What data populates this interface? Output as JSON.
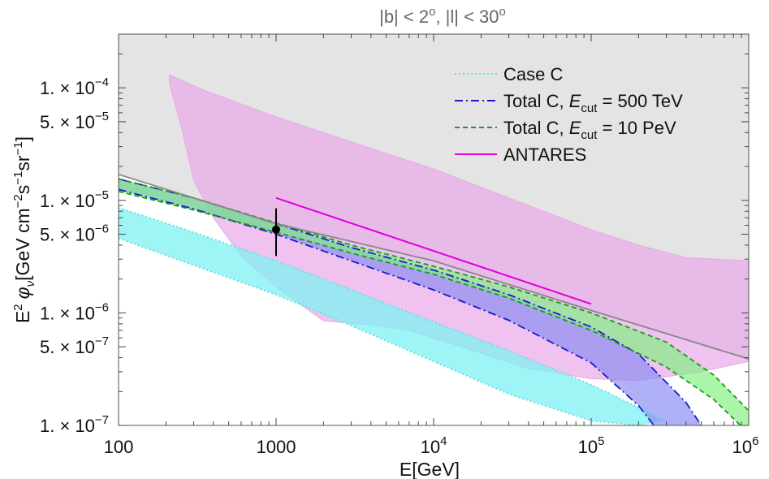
{
  "chart_data": {
    "type": "line",
    "title": "|b| < 2°, |l| < 30°",
    "title_parts": {
      "b": "|b| < 2",
      "sep": ", |l| < 30",
      "deg": "o"
    },
    "xlabel": "E[GeV]",
    "ylabel_parts": {
      "e": "E",
      "two": "2",
      "phi": "φ",
      "nu": "ν",
      "unit": "[GeV cm",
      "m2": "−2",
      "s": "s",
      "m1a": "−1",
      "sr": "sr",
      "m1b": "−1",
      "close": "]"
    },
    "x_scale": "log",
    "y_scale": "log",
    "xlim": [
      100,
      1000000
    ],
    "ylim": [
      1e-07,
      0.0003
    ],
    "x_ticks": [
      {
        "value": 100,
        "label": "100"
      },
      {
        "value": 1000,
        "label": "1000"
      },
      {
        "value": 10000,
        "base": "10",
        "exp": "4"
      },
      {
        "value": 100000,
        "base": "10",
        "exp": "5"
      },
      {
        "value": 1000000,
        "base": "10",
        "exp": "6"
      }
    ],
    "y_ticks": [
      {
        "value": 0.0001,
        "label": "1. × 10",
        "exp": "−4"
      },
      {
        "value": 5e-05,
        "label": "5. × 10",
        "exp": "−5"
      },
      {
        "value": 1e-05,
        "label": "1. × 10",
        "exp": "−5"
      },
      {
        "value": 5e-06,
        "label": "5. × 10",
        "exp": "−6"
      },
      {
        "value": 1e-06,
        "label": "1. × 10",
        "exp": "−6"
      },
      {
        "value": 5e-07,
        "label": "5. × 10",
        "exp": "−7"
      },
      {
        "value": 1e-07,
        "label": "1. × 10",
        "exp": "−7"
      }
    ],
    "legend": {
      "placement": "top-right",
      "entries": [
        {
          "key": "case_c",
          "text": "Case C"
        },
        {
          "key": "total_500",
          "pre": "Total C, ",
          "e": "E",
          "sub": "cut",
          "post": " = 500 TeV"
        },
        {
          "key": "total_10",
          "pre": "Total C, ",
          "e": "E",
          "sub": "cut",
          "post": " = 10 PeV"
        },
        {
          "key": "antares",
          "text": "ANTARES"
        }
      ]
    },
    "colors": {
      "excluded_region": "#e4e4e4",
      "case_c": "#5fe0e0",
      "case_c_fill": "#7ff2f2",
      "total_500": "#1a1acc",
      "total_500_fill": "#8f8ff2",
      "total_10": "#1a9a1a",
      "total_10_fill": "#7cf07c",
      "antares": "#e000d8",
      "antares_band": "#e8a8e8",
      "upper_limit": "#888888",
      "data_point": "#000000"
    },
    "series": [
      {
        "key": "excluded_region",
        "style": "upper limit boundary (gray region above)",
        "points": [
          [
            100,
            1.7e-05
          ],
          [
            1000,
            6.2e-06
          ],
          [
            10000,
            2.9e-06
          ],
          [
            100000,
            1.05e-06
          ],
          [
            1000000,
            3.9e-07
          ]
        ]
      },
      {
        "key": "case_c",
        "style": "dotted band",
        "upper": [
          [
            100,
            8.6e-06
          ],
          [
            300,
            5.2e-06
          ],
          [
            1000,
            2.9e-06
          ],
          [
            3000,
            1.6e-06
          ],
          [
            10000,
            8.3e-07
          ],
          [
            30000,
            4.6e-07
          ],
          [
            100000,
            2.3e-07
          ],
          [
            300000,
            1.1e-07
          ]
        ],
        "lower": [
          [
            100,
            4.6e-06
          ],
          [
            300,
            2.65e-06
          ],
          [
            1000,
            1.45e-06
          ],
          [
            3000,
            7.7e-07
          ],
          [
            10000,
            3.7e-07
          ],
          [
            30000,
            1.9e-07
          ],
          [
            100000,
            1.1e-07
          ],
          [
            200000,
            1e-07
          ]
        ]
      },
      {
        "key": "total_500",
        "style": "dash-dot band",
        "upper": [
          [
            100,
            1.55e-05
          ],
          [
            300,
            1.05e-05
          ],
          [
            1000,
            6.2e-06
          ],
          [
            3000,
            3.8e-06
          ],
          [
            10000,
            2.4e-06
          ],
          [
            30000,
            1.45e-06
          ],
          [
            100000,
            7.5e-07
          ],
          [
            200000,
            4.3e-07
          ],
          [
            400000,
            1.6e-07
          ],
          [
            500000,
            1e-07
          ]
        ],
        "lower": [
          [
            100,
            1.25e-05
          ],
          [
            300,
            8.4e-06
          ],
          [
            1000,
            5e-06
          ],
          [
            3000,
            2.9e-06
          ],
          [
            10000,
            1.6e-06
          ],
          [
            30000,
            8.6e-07
          ],
          [
            100000,
            3.6e-07
          ],
          [
            200000,
            1.5e-07
          ],
          [
            250000,
            1e-07
          ]
        ]
      },
      {
        "key": "total_10",
        "style": "dashed band",
        "upper": [
          [
            100,
            1.55e-05
          ],
          [
            300,
            1.05e-05
          ],
          [
            1000,
            6.3e-06
          ],
          [
            3000,
            4e-06
          ],
          [
            10000,
            2.6e-06
          ],
          [
            30000,
            1.7e-06
          ],
          [
            100000,
            1e-06
          ],
          [
            300000,
            5.5e-07
          ],
          [
            600000,
            2.8e-07
          ],
          [
            1000000,
            1.35e-07
          ]
        ],
        "lower": [
          [
            100,
            1.2e-05
          ],
          [
            300,
            8.2e-06
          ],
          [
            1000,
            5.2e-06
          ],
          [
            3000,
            3.4e-06
          ],
          [
            10000,
            2.2e-06
          ],
          [
            30000,
            1.35e-06
          ],
          [
            100000,
            7e-07
          ],
          [
            300000,
            3.3e-07
          ],
          [
            600000,
            1.7e-07
          ],
          [
            1000000,
            8.5e-08
          ]
        ]
      },
      {
        "key": "antares",
        "style": "solid line",
        "points": [
          [
            1000,
            1.05e-05
          ],
          [
            100000,
            1.2e-06
          ]
        ]
      },
      {
        "key": "antares_band",
        "style": "filled band",
        "upper": [
          [
            210,
            0.00013
          ],
          [
            350,
            9.5e-05
          ],
          [
            1000,
            5.5e-05
          ],
          [
            3000,
            3.3e-05
          ],
          [
            10000,
            1.9e-05
          ],
          [
            30000,
            1.05e-05
          ],
          [
            100000,
            5.5e-06
          ],
          [
            200000,
            4e-06
          ],
          [
            400000,
            3.1e-06
          ],
          [
            1000000,
            2.9e-06
          ]
        ],
        "lower": [
          [
            210,
            0.00011
          ],
          [
            250,
            4.5e-05
          ],
          [
            300,
            1.5e-05
          ],
          [
            400,
            7e-06
          ],
          [
            600,
            3.2e-06
          ],
          [
            1000,
            1.7e-06
          ],
          [
            2000,
            8.5e-07
          ],
          [
            4000,
            7.8e-07
          ],
          [
            7000,
            7e-07
          ],
          [
            15000,
            5e-07
          ],
          [
            40000,
            3.2e-07
          ],
          [
            100000,
            2.6e-07
          ],
          [
            200000,
            2.5e-07
          ],
          [
            500000,
            3e-07
          ],
          [
            1000000,
            3.7e-07
          ]
        ]
      },
      {
        "key": "data_point",
        "style": "point with error bar",
        "points": [
          [
            1000,
            5.5e-06
          ]
        ],
        "error": [
          [
            3.2e-06,
            8.5e-06
          ]
        ]
      }
    ]
  }
}
